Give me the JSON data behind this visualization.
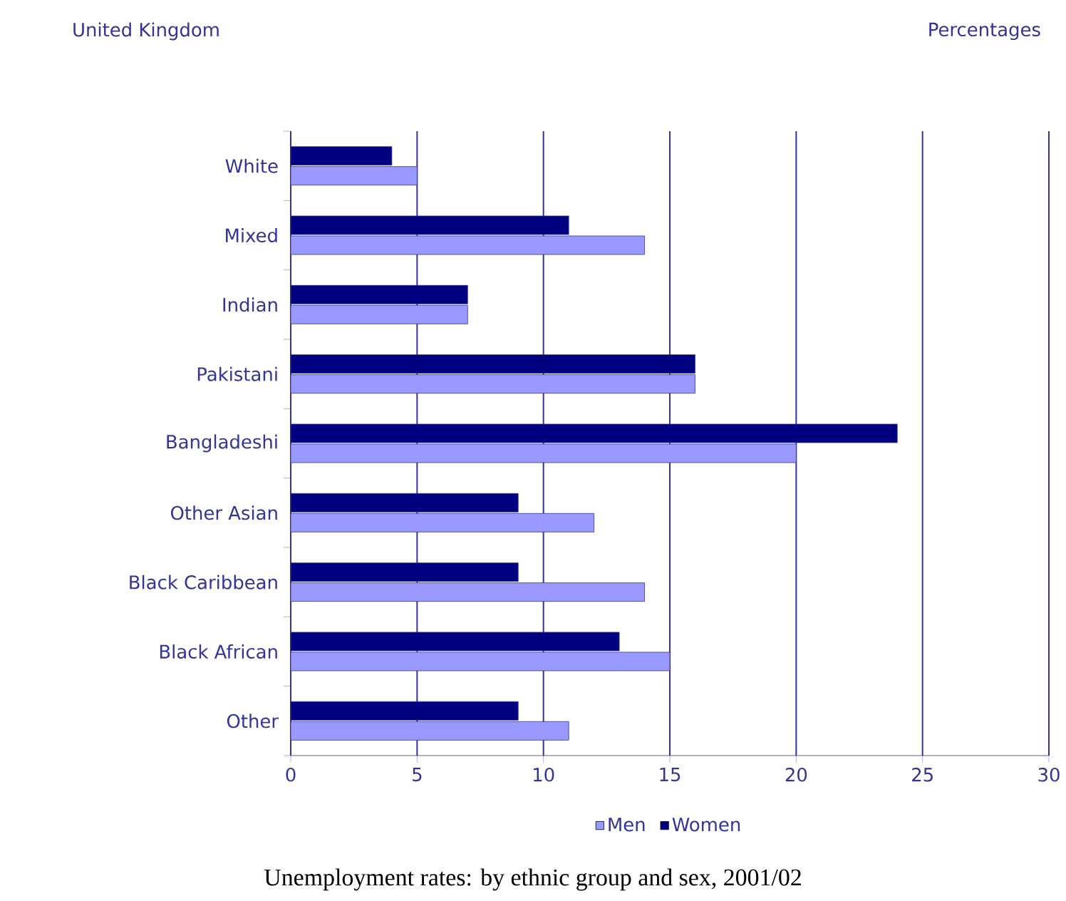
{
  "chart_data": {
    "type": "bar",
    "orientation": "horizontal",
    "title": "United Kingdom",
    "categories": [
      "White",
      "Mixed",
      "Indian",
      "Pakistani",
      "Bangladeshi",
      "Other Asian",
      "Black Caribbean",
      "Black African",
      "Other"
    ],
    "series": [
      {
        "name": "Men",
        "color": "#9999ff",
        "values": [
          5,
          14,
          7,
          16,
          20,
          12,
          14,
          15,
          11
        ]
      },
      {
        "name": "Women",
        "color": "#000080",
        "values": [
          4,
          11,
          7,
          16,
          24,
          9,
          9,
          13,
          9
        ]
      }
    ],
    "xlim": [
      0,
      30
    ],
    "xticks": [
      0,
      5,
      10,
      15,
      20,
      25,
      30
    ],
    "grid": "x",
    "legend": "bottom",
    "annotations": [
      "Percentages",
      "Unemployment rates: by ethnic group and sex, 2001/02"
    ]
  }
}
